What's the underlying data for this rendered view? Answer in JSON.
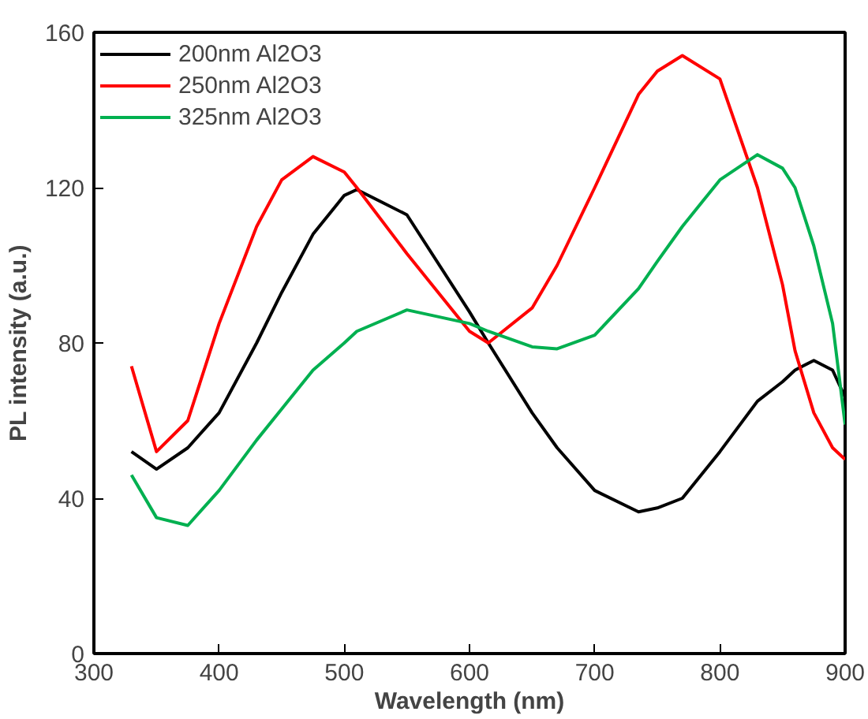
{
  "chart_data": {
    "type": "line",
    "xlabel": "Wavelength (nm)",
    "ylabel": "PL intensity (a.u.)",
    "xlim": [
      300,
      900
    ],
    "ylim": [
      0,
      160
    ],
    "xticks": [
      300,
      400,
      500,
      600,
      700,
      800,
      900
    ],
    "yticks": [
      0,
      40,
      80,
      120,
      160
    ],
    "grid": false,
    "legend": "top left",
    "marker": "none",
    "line_style": "solid",
    "x": [
      330,
      350,
      375,
      400,
      430,
      450,
      475,
      500,
      510,
      550,
      600,
      615,
      650,
      670,
      700,
      735,
      750,
      770,
      800,
      830,
      850,
      860,
      875,
      890,
      900
    ],
    "series": [
      {
        "name": "200nm Al2O3",
        "color": "#000000",
        "values": [
          52,
          47.5,
          53,
          62,
          80,
          93,
          108,
          118,
          119.5,
          113,
          88,
          80,
          62,
          53,
          42,
          36.5,
          37.5,
          40,
          52,
          65,
          70,
          73,
          75.5,
          73,
          66
        ]
      },
      {
        "name": "250nm Al2O3",
        "color": "#ff0000",
        "values": [
          74,
          52,
          60,
          85,
          110,
          122,
          128,
          124,
          120,
          103,
          83,
          80,
          89,
          100,
          120,
          144,
          150,
          154,
          148,
          120,
          95,
          78,
          62,
          53,
          50
        ]
      },
      {
        "name": "325nm Al2O3",
        "color": "#00b050",
        "values": [
          46,
          35,
          33,
          42,
          55,
          63,
          73,
          80,
          83,
          88.5,
          85,
          83,
          79,
          78.5,
          82,
          94,
          101,
          110,
          122,
          128.5,
          125,
          120,
          105,
          85,
          59
        ]
      }
    ]
  }
}
